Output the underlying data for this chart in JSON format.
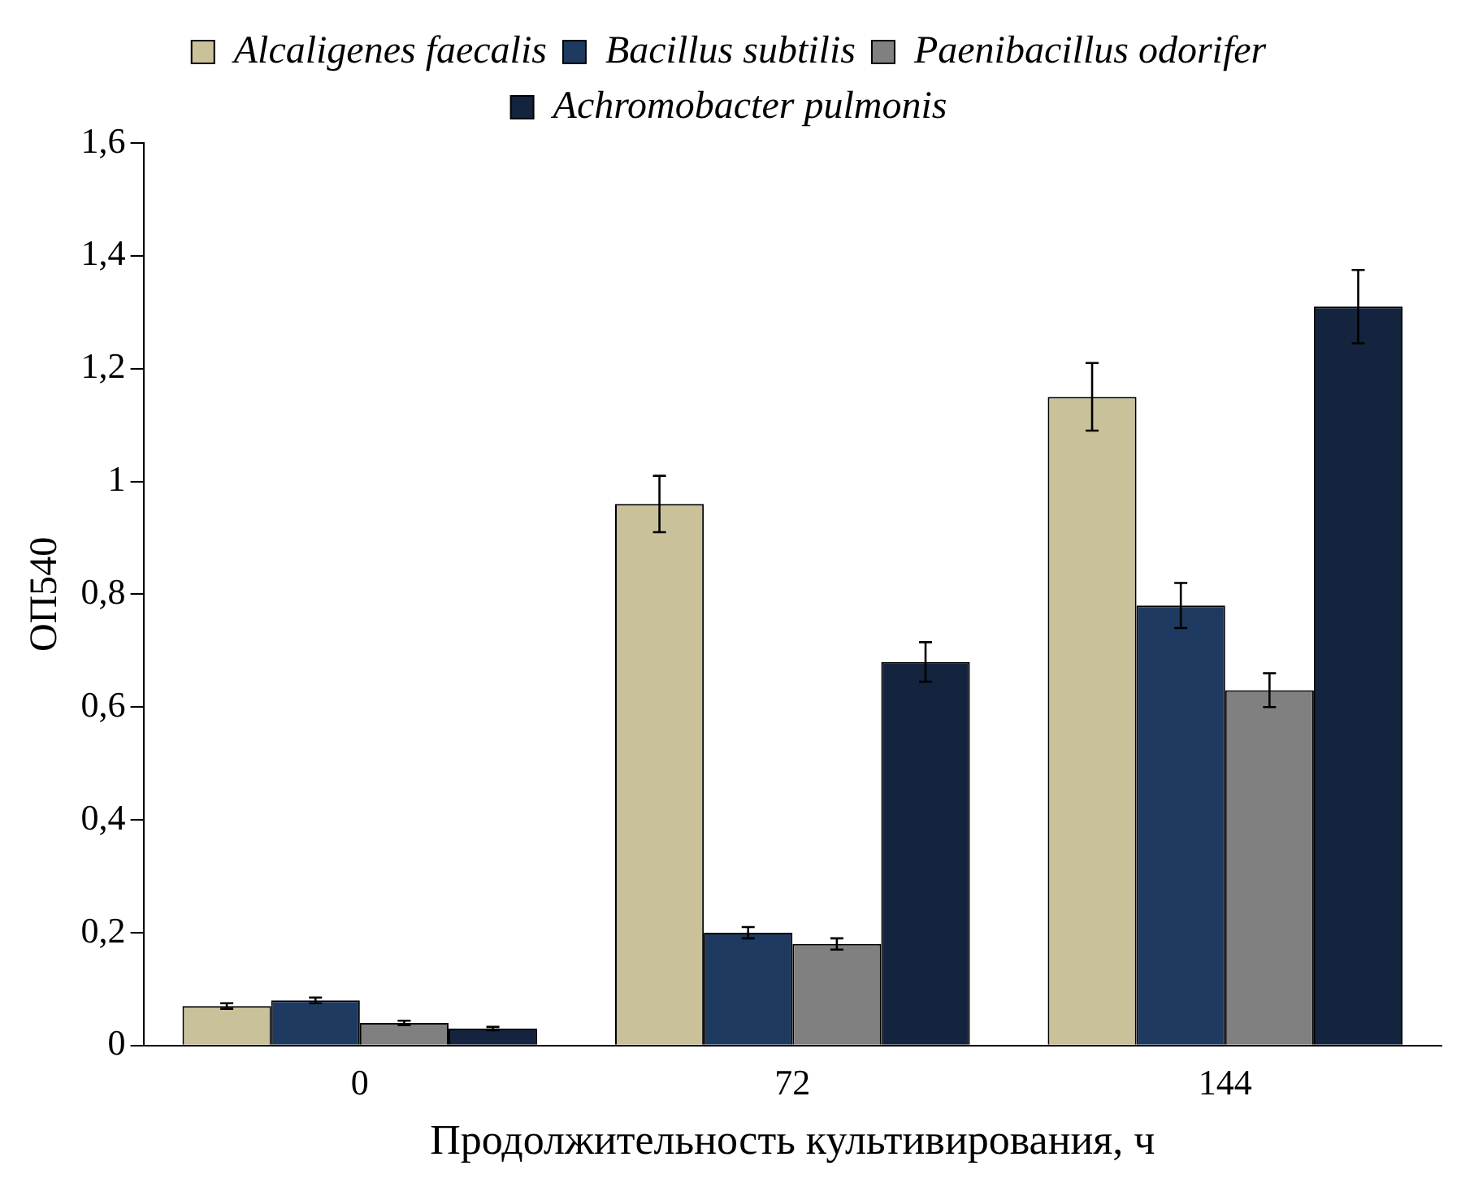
{
  "chart_data": {
    "type": "bar",
    "xlabel": "Продолжительность культивирования, ч",
    "ylabel": "ОП540",
    "categories": [
      "0",
      "72",
      "144"
    ],
    "series": [
      {
        "name": "Alcaligenes faecalis",
        "color": "#c9c19a",
        "values": [
          0.07,
          0.96,
          1.15
        ],
        "errors": [
          0.005,
          0.05,
          0.06
        ]
      },
      {
        "name": "Bacillus subtilis",
        "color": "#1f3a60",
        "values": [
          0.08,
          0.2,
          0.78
        ],
        "errors": [
          0.005,
          0.01,
          0.04
        ]
      },
      {
        "name": "Paenibacillus odorifer",
        "color": "#808080",
        "values": [
          0.04,
          0.18,
          0.63
        ],
        "errors": [
          0.004,
          0.01,
          0.03
        ]
      },
      {
        "name": "Achromobacter pulmonis",
        "color": "#14243f",
        "values": [
          0.03,
          0.68,
          1.31
        ],
        "errors": [
          0.003,
          0.035,
          0.065
        ]
      }
    ],
    "ylim": [
      0,
      1.6
    ],
    "yticks": [
      0,
      {
        "value": 0.2,
        "label": "0,2"
      },
      {
        "value": 0.4,
        "label": "0,4"
      },
      {
        "value": 0.6,
        "label": "0,6"
      },
      {
        "value": 0.8,
        "label": "0,8"
      },
      1,
      {
        "value": 1.2,
        "label": "1,2"
      },
      {
        "value": 1.4,
        "label": "1,4"
      },
      {
        "value": 1.6,
        "label": "1,6"
      }
    ],
    "grid": false,
    "legend": "top"
  }
}
